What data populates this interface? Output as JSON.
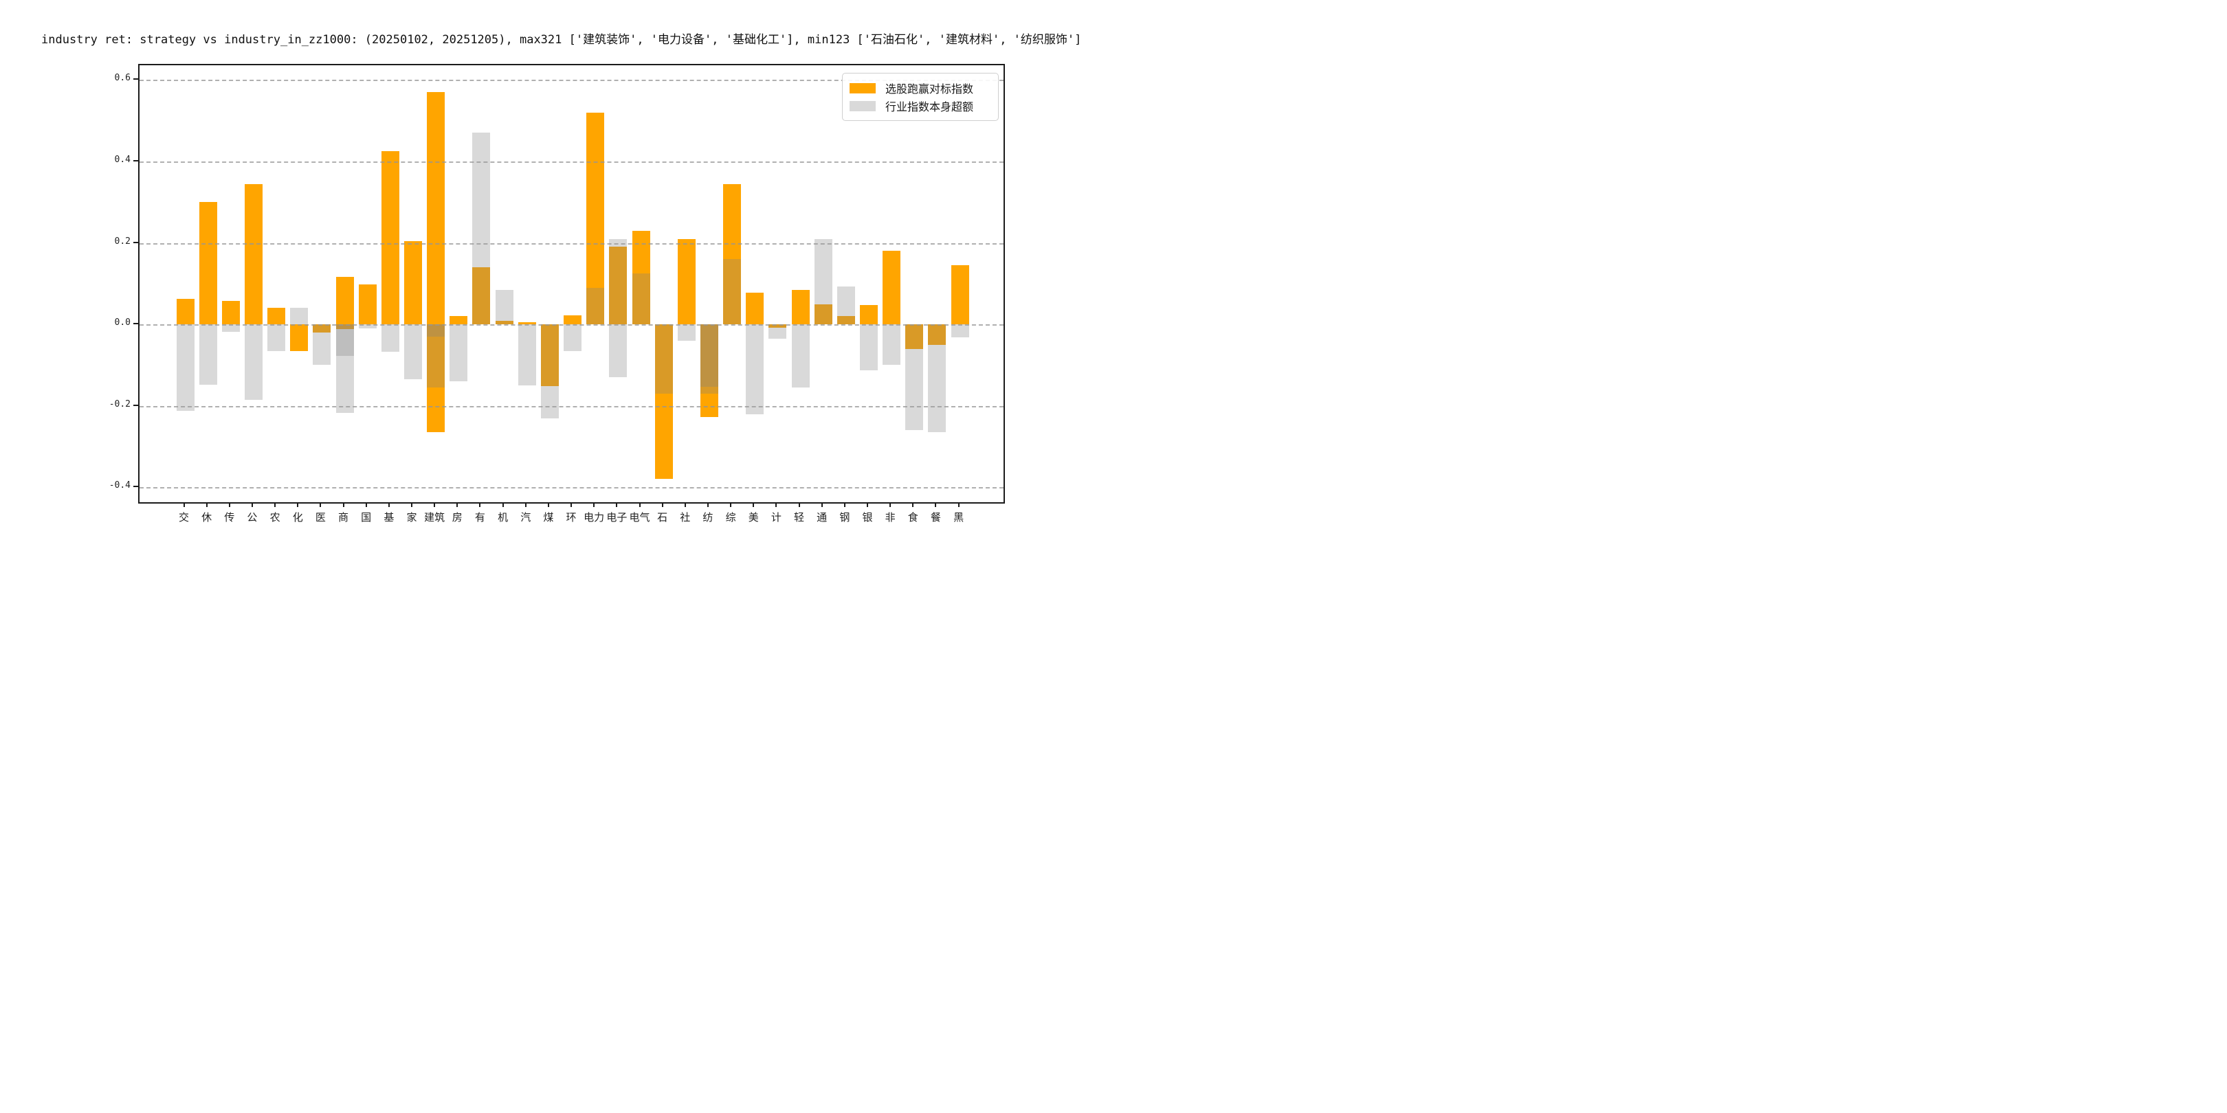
{
  "title": "industry ret: strategy vs industry_in_zz1000: (20250102, 20251205), max321 ['建筑装饰', '电力设备', '基础化工'], min123 ['石油石化', '建筑材料', '纺织服饰']",
  "legend": {
    "items": [
      {
        "label": "选股跑赢对标指数",
        "color": "#FFA500"
      },
      {
        "label": "行业指数本身超额",
        "color": "#D9D9D9"
      }
    ]
  },
  "colors": {
    "orange": "#FFA500",
    "gray_on_white": "#D9D9D9",
    "overlap_orange_gray": "#D99A26",
    "spine": "#1b1b1b"
  },
  "chart_data": {
    "type": "bar",
    "title": "industry ret: strategy vs industry_in_zz1000: (20250102, 20251205), max321 ['建筑装饰', '电力设备', '基础化工'], min123 ['石油石化', '建筑材料', '纺织服饰']",
    "categories": [
      "交",
      "休",
      "传",
      "公",
      "农",
      "化",
      "医",
      "商",
      "国",
      "基",
      "家",
      "建筑",
      "房",
      "有",
      "机",
      "汽",
      "煤",
      "环",
      "电力",
      "电子",
      "电气",
      "石",
      "社",
      "纺",
      "综",
      "美",
      "计",
      "轻",
      "通",
      "钢",
      "银",
      "非",
      "食",
      "餐",
      "黑"
    ],
    "series": [
      {
        "name": "选股跑赢对标指数",
        "color": "#FFA500",
        "values": [
          0.062,
          0.3,
          0.058,
          0.345,
          0.04,
          -0.065,
          -0.02,
          [
            0.117,
            -0.012
          ],
          0.098,
          0.425,
          0.205,
          [
            0.57,
            -0.265
          ],
          0.02,
          0.14,
          0.008,
          0.006,
          -0.152,
          0.022,
          0.52,
          0.19,
          0.23,
          -0.38,
          0.21,
          -0.228,
          0.345,
          0.078,
          -0.008,
          0.085,
          0.05,
          0.02,
          0.048,
          0.18,
          -0.06,
          -0.05,
          0.145
        ]
      },
      {
        "name": "行业指数本身超额",
        "color": "rgba(128,128,128,0.30)",
        "values": [
          -0.212,
          -0.148,
          -0.018,
          -0.186,
          -0.065,
          0.04,
          -0.1,
          [
            -0.078,
            -0.218
          ],
          -0.01,
          -0.067,
          -0.135,
          [
            -0.155,
            -0.03
          ],
          -0.14,
          0.47,
          0.085,
          -0.15,
          -0.23,
          -0.065,
          0.09,
          [
            0.21,
            -0.13
          ],
          0.125,
          -0.17,
          -0.04,
          [
            -0.154,
            -0.17
          ],
          0.16,
          -0.22,
          -0.035,
          -0.155,
          0.21,
          0.093,
          -0.112,
          -0.1,
          -0.26,
          -0.265,
          -0.032
        ]
      }
    ],
    "yticks": [
      0.6,
      0.4,
      0.2,
      0.0,
      -0.2,
      -0.4
    ],
    "ylim": [
      -0.4365,
      0.636
    ],
    "grid": "dashed horizontal",
    "legend_position": "upper right",
    "xlabel": "",
    "ylabel": ""
  }
}
